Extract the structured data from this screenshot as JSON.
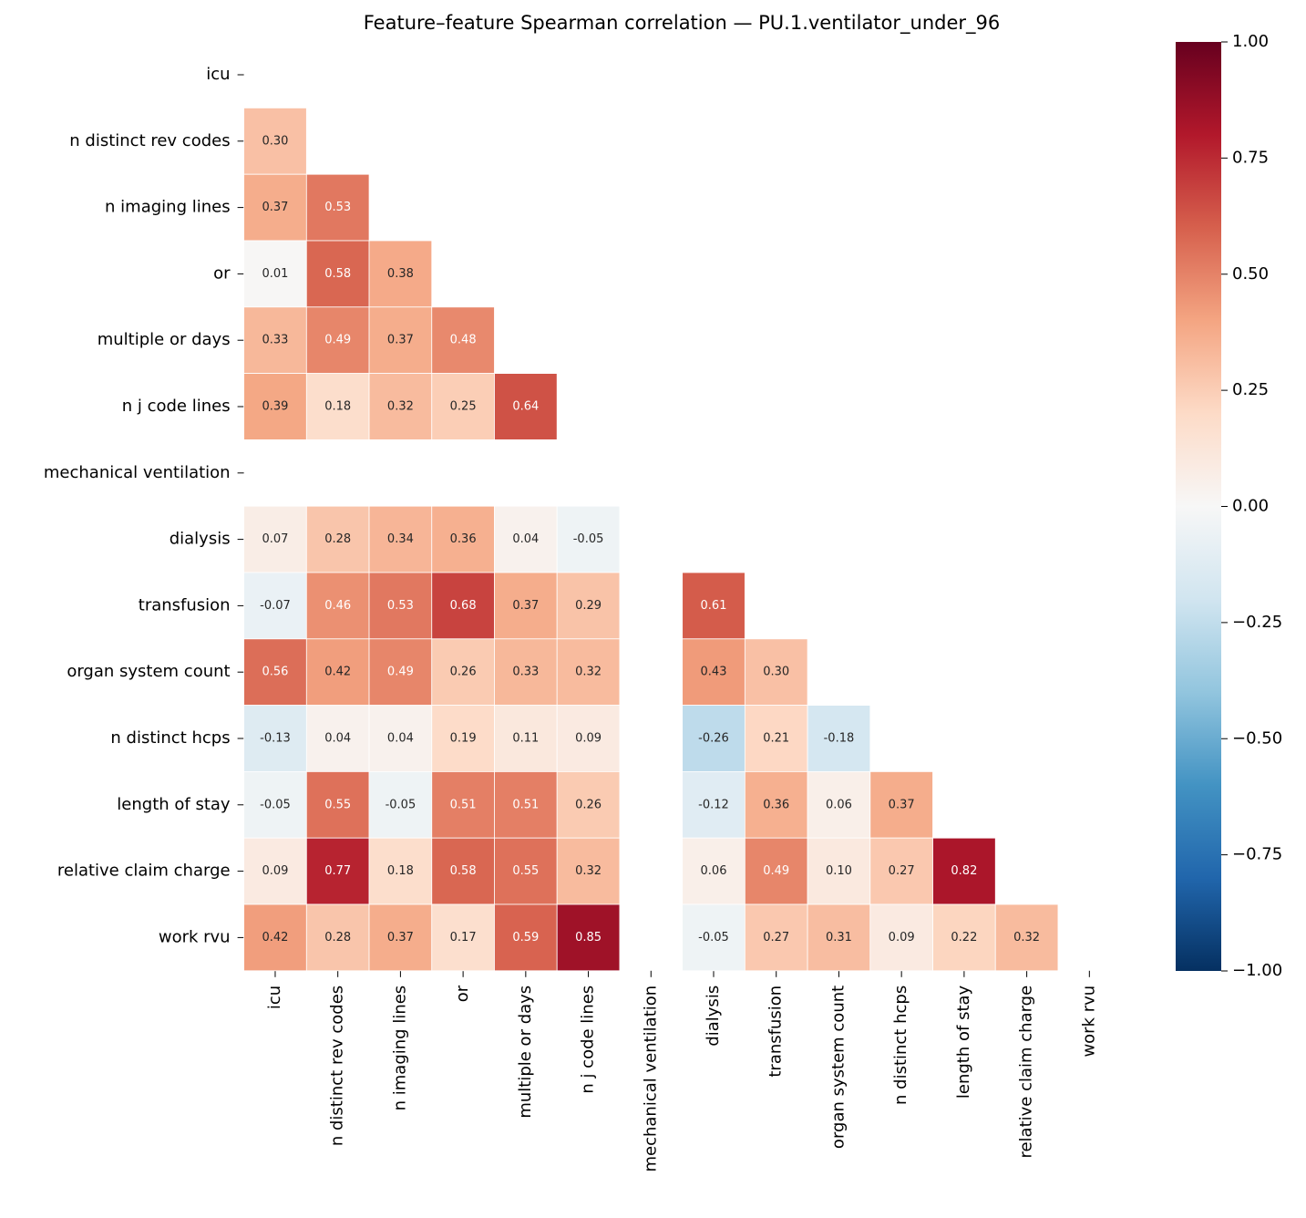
{
  "chart_data": {
    "type": "heatmap",
    "title": "Feature–feature Spearman correlation — PU.1.ventilator_under_96",
    "categories": [
      "icu",
      "n distinct rev codes",
      "n imaging lines",
      "or",
      "multiple or days",
      "n j code lines",
      "mechanical ventilation",
      "dialysis",
      "transfusion",
      "organ system count",
      "n distinct hcps",
      "length of stay",
      "relative claim charge",
      "work rvu"
    ],
    "values": [
      [
        null,
        null,
        null,
        null,
        null,
        null,
        null,
        null,
        null,
        null,
        null,
        null,
        null,
        null
      ],
      [
        0.3,
        null,
        null,
        null,
        null,
        null,
        null,
        null,
        null,
        null,
        null,
        null,
        null,
        null
      ],
      [
        0.37,
        0.53,
        null,
        null,
        null,
        null,
        null,
        null,
        null,
        null,
        null,
        null,
        null,
        null
      ],
      [
        0.01,
        0.58,
        0.38,
        null,
        null,
        null,
        null,
        null,
        null,
        null,
        null,
        null,
        null,
        null
      ],
      [
        0.33,
        0.49,
        0.37,
        0.48,
        null,
        null,
        null,
        null,
        null,
        null,
        null,
        null,
        null,
        null
      ],
      [
        0.39,
        0.18,
        0.32,
        0.25,
        0.64,
        null,
        null,
        null,
        null,
        null,
        null,
        null,
        null,
        null
      ],
      [
        null,
        null,
        null,
        null,
        null,
        null,
        null,
        null,
        null,
        null,
        null,
        null,
        null,
        null
      ],
      [
        0.07,
        0.28,
        0.34,
        0.36,
        0.04,
        -0.05,
        null,
        null,
        null,
        null,
        null,
        null,
        null,
        null
      ],
      [
        -0.07,
        0.46,
        0.53,
        0.68,
        0.37,
        0.29,
        null,
        0.61,
        null,
        null,
        null,
        null,
        null,
        null
      ],
      [
        0.56,
        0.42,
        0.49,
        0.26,
        0.33,
        0.32,
        null,
        0.43,
        0.3,
        null,
        null,
        null,
        null,
        null
      ],
      [
        -0.13,
        0.04,
        0.04,
        0.19,
        0.11,
        0.09,
        null,
        -0.26,
        0.21,
        -0.18,
        null,
        null,
        null,
        null
      ],
      [
        -0.05,
        0.55,
        -0.05,
        0.51,
        0.51,
        0.26,
        null,
        -0.12,
        0.36,
        0.06,
        0.37,
        null,
        null,
        null
      ],
      [
        0.09,
        0.77,
        0.18,
        0.58,
        0.55,
        0.32,
        null,
        0.06,
        0.49,
        0.1,
        0.27,
        0.82,
        null,
        null
      ],
      [
        0.42,
        0.28,
        0.37,
        0.17,
        0.59,
        0.85,
        null,
        -0.05,
        0.27,
        0.31,
        0.09,
        0.22,
        0.32,
        null
      ]
    ],
    "value_labels": [
      [
        null,
        null,
        null,
        null,
        null,
        null,
        null,
        null,
        null,
        null,
        null,
        null,
        null,
        null
      ],
      [
        "0.30",
        null,
        null,
        null,
        null,
        null,
        null,
        null,
        null,
        null,
        null,
        null,
        null,
        null
      ],
      [
        "0.37",
        "0.53",
        null,
        null,
        null,
        null,
        null,
        null,
        null,
        null,
        null,
        null,
        null,
        null
      ],
      [
        "0.01",
        "0.58",
        "0.38",
        null,
        null,
        null,
        null,
        null,
        null,
        null,
        null,
        null,
        null,
        null
      ],
      [
        "0.33",
        "0.49",
        "0.37",
        "0.48",
        null,
        null,
        null,
        null,
        null,
        null,
        null,
        null,
        null,
        null
      ],
      [
        "0.39",
        "0.18",
        "0.32",
        "0.25",
        "0.64",
        null,
        null,
        null,
        null,
        null,
        null,
        null,
        null,
        null
      ],
      [
        null,
        null,
        null,
        null,
        null,
        null,
        null,
        null,
        null,
        null,
        null,
        null,
        null,
        null
      ],
      [
        "0.07",
        "0.28",
        "0.34",
        "0.36",
        "0.04",
        "-0.05",
        null,
        null,
        null,
        null,
        null,
        null,
        null,
        null
      ],
      [
        "-0.07",
        "0.46",
        "0.53",
        "0.68",
        "0.37",
        "0.29",
        null,
        "0.61",
        null,
        null,
        null,
        null,
        null,
        null
      ],
      [
        "0.56",
        "0.42",
        "0.49",
        "0.26",
        "0.33",
        "0.32",
        null,
        "0.43",
        "0.30",
        null,
        null,
        null,
        null,
        null
      ],
      [
        "-0.13",
        "0.04",
        "0.04",
        "0.19",
        "0.11",
        "0.09",
        null,
        "-0.26",
        "0.21",
        "-0.18",
        null,
        null,
        null,
        null
      ],
      [
        "-0.05",
        "0.55",
        "-0.05",
        "0.51",
        "0.51",
        "0.26",
        null,
        "-0.12",
        "0.36",
        "0.06",
        "0.37",
        null,
        null,
        null
      ],
      [
        "0.09",
        "0.77",
        "0.18",
        "0.58",
        "0.55",
        "0.32",
        null,
        "0.06",
        "0.49",
        "0.10",
        "0.27",
        "0.82",
        null,
        null
      ],
      [
        "0.42",
        "0.28",
        "0.37",
        "0.17",
        "0.59",
        "0.85",
        null,
        "-0.05",
        "0.27",
        "0.31",
        "0.09",
        "0.22",
        "0.32",
        null
      ]
    ],
    "colormap": "RdBu_r",
    "clim": [
      -1,
      1
    ],
    "cticks": [
      {
        "value": 1,
        "label": "1.00"
      },
      {
        "value": 0.75,
        "label": "0.75"
      },
      {
        "value": 0.5,
        "label": "0.50"
      },
      {
        "value": 0.25,
        "label": "0.25"
      },
      {
        "value": 0,
        "label": "0.00"
      },
      {
        "value": -0.25,
        "label": "−0.25"
      },
      {
        "value": -0.5,
        "label": "−0.50"
      },
      {
        "value": -0.75,
        "label": "−0.75"
      },
      {
        "value": -1,
        "label": "−1.00"
      }
    ]
  }
}
